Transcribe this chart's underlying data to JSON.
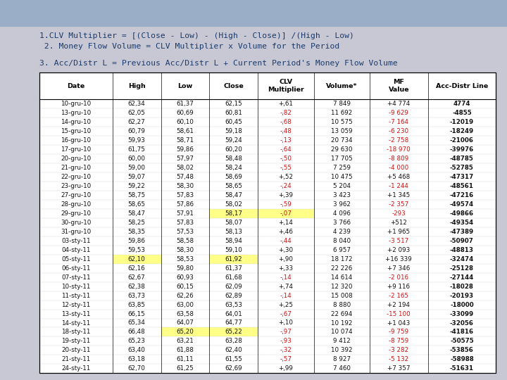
{
  "bg_color": "#c8c8d4",
  "bg_top_color": "#9aaec8",
  "text_color": "#1a3a6b",
  "line1": "1.CLV Multiplier = [(Close - Low) - (High - Close)] /(High - Low)",
  "line2": " 2. Money Flow Volume = CLV Multiplier x Volume for the Period",
  "line3": "3. Acc/Distr L = Previous Acc/Distr L + Current Period's Money Flow Volume",
  "yellow_bg": "#ffff88",
  "red_text": "#cc1111",
  "black_text": "#111111",
  "headers": [
    "Date",
    "High",
    "Low",
    "Close",
    "CLV\nMultiplier",
    "Volume*",
    "MF\nValue",
    "Acc-Distr Line"
  ],
  "col_widths": [
    1.5,
    1.0,
    1.0,
    1.0,
    1.15,
    1.15,
    1.2,
    1.4
  ],
  "rows": [
    [
      "10-gru-10",
      "62,34",
      "61,37",
      "62,15",
      "+,61",
      "7 849",
      "+4 774",
      "4774",
      [],
      "+"
    ],
    [
      "13-gru-10",
      "62,05",
      "60,69",
      "60,81",
      "-,82",
      "11 692",
      "-9 629",
      "-4855",
      [],
      "-"
    ],
    [
      "14-gru-10",
      "62,27",
      "60,10",
      "60,45",
      "-,68",
      "10 575",
      "-7 164",
      "-12019",
      [],
      "-"
    ],
    [
      "15-gru-10",
      "60,79",
      "58,61",
      "59,18",
      "-,48",
      "13 059",
      "-6 230",
      "-18249",
      [],
      "-"
    ],
    [
      "16-gru-10",
      "59,93",
      "58,71",
      "59,24",
      "-,13",
      "20 734",
      "-2 758",
      "-21006",
      [],
      "-"
    ],
    [
      "17-gru-10",
      "61,75",
      "59,86",
      "60,20",
      "-,64",
      "29 630",
      "-18 970",
      "-39976",
      [],
      "-"
    ],
    [
      "20-gru-10",
      "60,00",
      "57,97",
      "58,48",
      "-,50",
      "17 705",
      "-8 809",
      "-48785",
      [],
      "-"
    ],
    [
      "21-gru-10",
      "59,00",
      "58,02",
      "58,24",
      "-,55",
      "7 259",
      "-4 000",
      "-52785",
      [],
      "-"
    ],
    [
      "22-gru-10",
      "59,07",
      "57,48",
      "58,69",
      "+,52",
      "10 475",
      "+5 468",
      "-47317",
      [],
      "+"
    ],
    [
      "23-gru-10",
      "59,22",
      "58,30",
      "58,65",
      "-,24",
      "5 204",
      "-1 244",
      "-48561",
      [],
      "-"
    ],
    [
      "27-gru-10",
      "58,75",
      "57,83",
      "58,47",
      "+,39",
      "3 423",
      "+1 345",
      "-47216",
      [],
      "+"
    ],
    [
      "28-gru-10",
      "58,65",
      "57,86",
      "58,02",
      "-,59",
      "3 962",
      "-2 357",
      "-49574",
      [],
      "-"
    ],
    [
      "29-gru-10",
      "58,47",
      "57,91",
      "58,17",
      "-,07",
      "4 096",
      "-293",
      "-49866",
      [
        3,
        4
      ],
      "-"
    ],
    [
      "30-gru-10",
      "58,25",
      "57,83",
      "58,07",
      "+,14",
      "3 766",
      "+512",
      "-49354",
      [],
      "+"
    ],
    [
      "31-gru-10",
      "58,35",
      "57,53",
      "58,13",
      "+,46",
      "4 239",
      "+1 965",
      "-47389",
      [],
      "+"
    ],
    [
      "03-sty-11",
      "59,86",
      "58,58",
      "58,94",
      "-,44",
      "8 040",
      "-3 517",
      "-50907",
      [],
      "-"
    ],
    [
      "04-sty-11",
      "59,53",
      "58,30",
      "59,10",
      "+,30",
      "6 957",
      "+2 093",
      "-48813",
      [],
      "+"
    ],
    [
      "05-sty-11",
      "62,10",
      "58,53",
      "61,92",
      "+,90",
      "18 172",
      "+16 339",
      "-32474",
      [
        1,
        3
      ],
      "+"
    ],
    [
      "06-sty-11",
      "62,16",
      "59,80",
      "61,37",
      "+,33",
      "22 226",
      "+7 346",
      "-25128",
      [],
      "+"
    ],
    [
      "07-sty-11",
      "62,67",
      "60,93",
      "61,68",
      "-,14",
      "14 614",
      "-2 016",
      "-27144",
      [],
      "-"
    ],
    [
      "10-sty-11",
      "62,38",
      "60,15",
      "62,09",
      "+,74",
      "12 320",
      "+9 116",
      "-18028",
      [],
      "+"
    ],
    [
      "11-sty-11",
      "63,73",
      "62,26",
      "62,89",
      "-,14",
      "15 008",
      "-2 165",
      "-20193",
      [],
      "-"
    ],
    [
      "12-sty-11",
      "63,85",
      "63,00",
      "63,53",
      "+,25",
      "8 880",
      "+2 194",
      "-18000",
      [],
      "+"
    ],
    [
      "13-sty-11",
      "66,15",
      "63,58",
      "64,01",
      "-,67",
      "22 694",
      "-15 100",
      "-33099",
      [],
      "-"
    ],
    [
      "14-sty-11",
      "65,34",
      "64,07",
      "64,77",
      "+,10",
      "10 192",
      "+1 043",
      "-32056",
      [],
      "+"
    ],
    [
      "18-sty-11",
      "66,48",
      "65,20",
      "65,22",
      "-,97",
      "10 074",
      "-9 759",
      "-41816",
      [
        2,
        3
      ],
      "-"
    ],
    [
      "19-sty-11",
      "65,23",
      "63,21",
      "63,28",
      "-,93",
      "9 412",
      "-8 759",
      "-50575",
      [],
      "-"
    ],
    [
      "20-sty-11",
      "63,40",
      "61,88",
      "62,40",
      "-,32",
      "10 392",
      "-3 282",
      "-53856",
      [],
      "-"
    ],
    [
      "21-sty-11",
      "63,18",
      "61,11",
      "61,55",
      "-,57",
      "8 927",
      "-5 132",
      "-58988",
      [],
      "-"
    ],
    [
      "24-sty-11",
      "62,70",
      "61,25",
      "62,69",
      "+,99",
      "7 460",
      "+7 357",
      "-51631",
      [],
      "+"
    ]
  ]
}
